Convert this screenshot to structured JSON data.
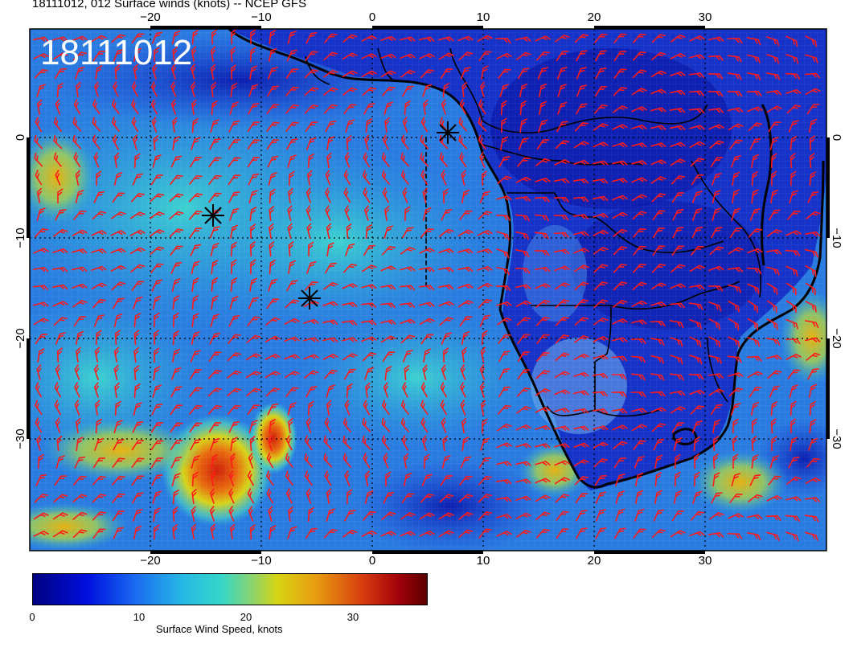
{
  "title": "18111012, 012 Surface winds (knots) -- NCEP GFS",
  "stamp": "18111012",
  "lon_ticks": [
    "−20",
    "−10",
    "0",
    "10",
    "20",
    "30"
  ],
  "lat_ticks": [
    "0",
    "−10",
    "−20",
    "−30"
  ],
  "colorbar": {
    "label": "Surface Wind Speed, knots",
    "ticks": [
      "0",
      "10",
      "20",
      "30"
    ],
    "range": [
      0,
      37
    ]
  },
  "colors": {
    "barb": "#ff1a1a",
    "land_outline": "#000000",
    "ocean_low": "#1a3fd6",
    "ocean_mid": "#2bbbd8",
    "high_wind": "#e02010"
  },
  "markers": [
    "x-marker",
    "x-marker",
    "x-marker"
  ]
}
